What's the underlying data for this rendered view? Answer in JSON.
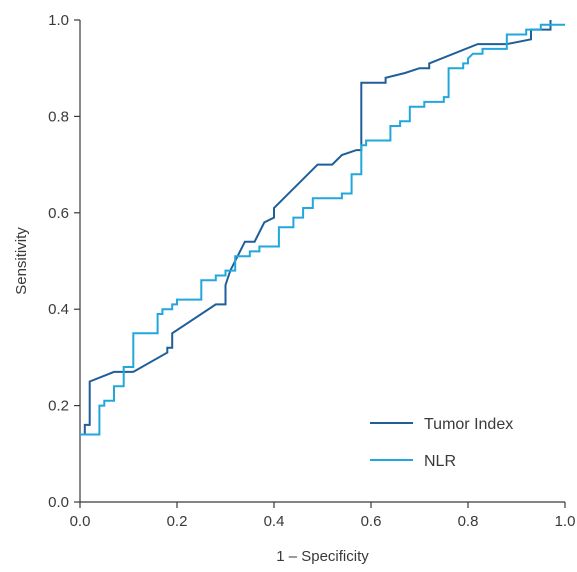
{
  "chart_data": {
    "type": "line",
    "title": "",
    "xlabel": "1 – Specificity",
    "ylabel": "Sensitivity",
    "xlim": [
      0,
      1
    ],
    "ylim": [
      0,
      1
    ],
    "xticks": [
      "0.0",
      "0.2",
      "0.4",
      "0.6",
      "0.8",
      "1.0"
    ],
    "yticks": [
      "0.0",
      "0.2",
      "0.4",
      "0.6",
      "0.8",
      "1.0"
    ],
    "grid": false,
    "legend_position": "bottom-right",
    "series": [
      {
        "name": "Tumor Index",
        "color": "#1f5f99",
        "points": [
          [
            0.0,
            0.14
          ],
          [
            0.01,
            0.14
          ],
          [
            0.01,
            0.16
          ],
          [
            0.02,
            0.16
          ],
          [
            0.02,
            0.25
          ],
          [
            0.07,
            0.27
          ],
          [
            0.11,
            0.27
          ],
          [
            0.18,
            0.31
          ],
          [
            0.18,
            0.32
          ],
          [
            0.19,
            0.32
          ],
          [
            0.19,
            0.35
          ],
          [
            0.28,
            0.41
          ],
          [
            0.3,
            0.41
          ],
          [
            0.3,
            0.45
          ],
          [
            0.31,
            0.48
          ],
          [
            0.34,
            0.54
          ],
          [
            0.36,
            0.54
          ],
          [
            0.38,
            0.58
          ],
          [
            0.4,
            0.59
          ],
          [
            0.4,
            0.61
          ],
          [
            0.49,
            0.7
          ],
          [
            0.52,
            0.7
          ],
          [
            0.54,
            0.72
          ],
          [
            0.57,
            0.73
          ],
          [
            0.58,
            0.73
          ],
          [
            0.58,
            0.87
          ],
          [
            0.63,
            0.87
          ],
          [
            0.63,
            0.88
          ],
          [
            0.67,
            0.89
          ],
          [
            0.67,
            0.89
          ],
          [
            0.7,
            0.9
          ],
          [
            0.72,
            0.9
          ],
          [
            0.72,
            0.91
          ],
          [
            0.82,
            0.95
          ],
          [
            0.88,
            0.95
          ],
          [
            0.93,
            0.96
          ],
          [
            0.93,
            0.98
          ],
          [
            0.97,
            0.98
          ],
          [
            0.97,
            1.0
          ]
        ]
      },
      {
        "name": "NLR",
        "color": "#21a7dc",
        "points": [
          [
            0.0,
            0.14
          ],
          [
            0.04,
            0.14
          ],
          [
            0.04,
            0.2
          ],
          [
            0.05,
            0.2
          ],
          [
            0.05,
            0.21
          ],
          [
            0.07,
            0.21
          ],
          [
            0.07,
            0.24
          ],
          [
            0.09,
            0.24
          ],
          [
            0.09,
            0.28
          ],
          [
            0.11,
            0.28
          ],
          [
            0.11,
            0.35
          ],
          [
            0.16,
            0.35
          ],
          [
            0.16,
            0.39
          ],
          [
            0.17,
            0.39
          ],
          [
            0.17,
            0.4
          ],
          [
            0.19,
            0.4
          ],
          [
            0.19,
            0.41
          ],
          [
            0.2,
            0.41
          ],
          [
            0.2,
            0.42
          ],
          [
            0.25,
            0.42
          ],
          [
            0.25,
            0.46
          ],
          [
            0.28,
            0.46
          ],
          [
            0.28,
            0.47
          ],
          [
            0.3,
            0.47
          ],
          [
            0.3,
            0.48
          ],
          [
            0.32,
            0.48
          ],
          [
            0.32,
            0.51
          ],
          [
            0.35,
            0.51
          ],
          [
            0.35,
            0.52
          ],
          [
            0.37,
            0.52
          ],
          [
            0.37,
            0.53
          ],
          [
            0.41,
            0.53
          ],
          [
            0.41,
            0.57
          ],
          [
            0.44,
            0.57
          ],
          [
            0.44,
            0.59
          ],
          [
            0.46,
            0.59
          ],
          [
            0.46,
            0.61
          ],
          [
            0.48,
            0.61
          ],
          [
            0.48,
            0.63
          ],
          [
            0.54,
            0.63
          ],
          [
            0.54,
            0.64
          ],
          [
            0.56,
            0.64
          ],
          [
            0.56,
            0.68
          ],
          [
            0.58,
            0.68
          ],
          [
            0.58,
            0.74
          ],
          [
            0.59,
            0.74
          ],
          [
            0.59,
            0.75
          ],
          [
            0.64,
            0.75
          ],
          [
            0.64,
            0.78
          ],
          [
            0.66,
            0.78
          ],
          [
            0.66,
            0.79
          ],
          [
            0.68,
            0.79
          ],
          [
            0.68,
            0.82
          ],
          [
            0.71,
            0.82
          ],
          [
            0.71,
            0.83
          ],
          [
            0.75,
            0.83
          ],
          [
            0.75,
            0.84
          ],
          [
            0.75,
            0.84
          ],
          [
            0.75,
            0.84
          ],
          [
            0.76,
            0.84
          ],
          [
            0.76,
            0.9
          ],
          [
            0.79,
            0.9
          ],
          [
            0.79,
            0.91
          ],
          [
            0.8,
            0.91
          ],
          [
            0.8,
            0.92
          ],
          [
            0.81,
            0.93
          ],
          [
            0.83,
            0.93
          ],
          [
            0.83,
            0.94
          ],
          [
            0.88,
            0.94
          ],
          [
            0.88,
            0.97
          ],
          [
            0.92,
            0.97
          ],
          [
            0.92,
            0.98
          ],
          [
            0.95,
            0.98
          ],
          [
            0.95,
            0.99
          ],
          [
            0.97,
            0.99
          ],
          [
            0.97,
            0.99
          ],
          [
            1.0,
            0.99
          ]
        ]
      }
    ]
  }
}
